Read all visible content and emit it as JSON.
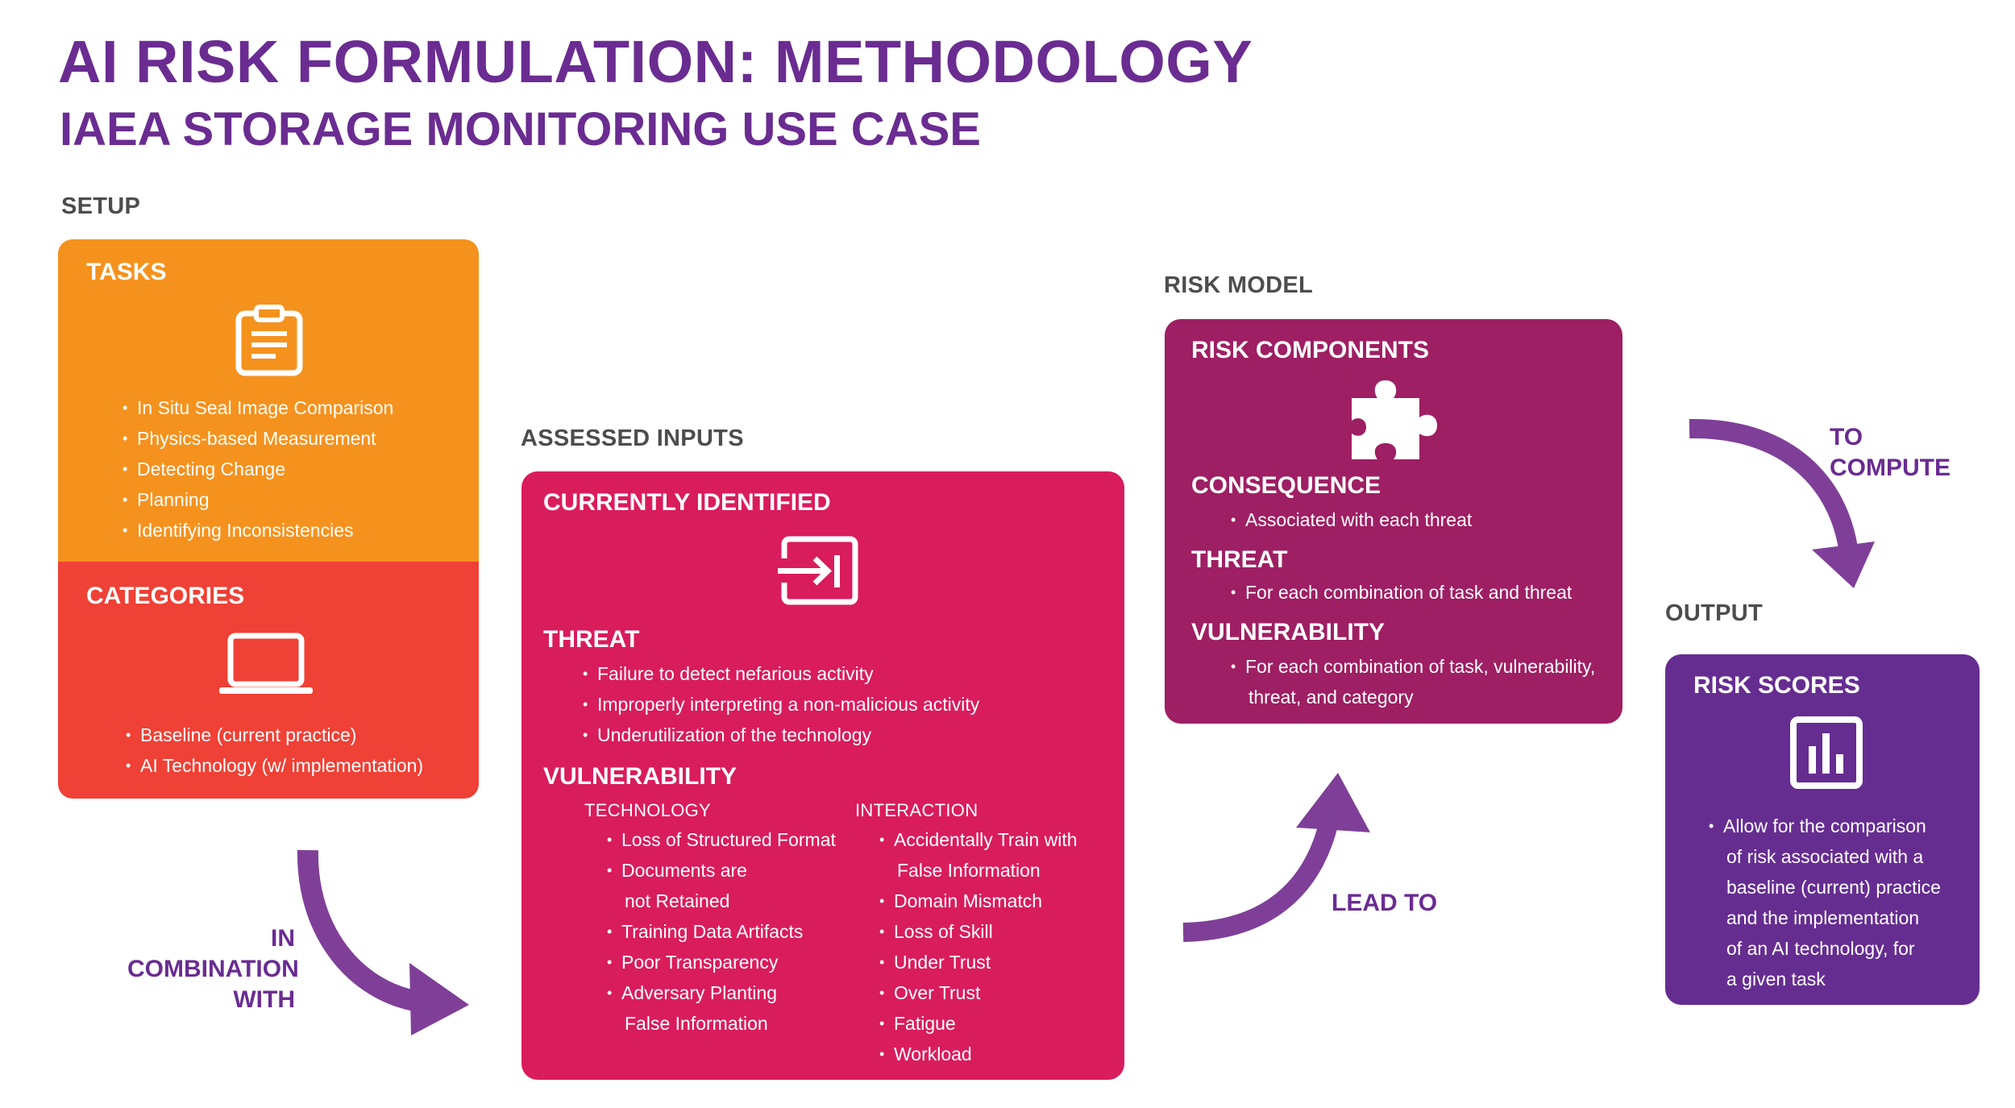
{
  "header": {
    "title": "AI RISK FORMULATION: METHODOLOGY",
    "subtitle": "IAEA STORAGE MONITORING USE CASE"
  },
  "sections": {
    "setup": "SETUP",
    "assessed_inputs": "ASSESSED INPUTS",
    "risk_model": "RISK MODEL",
    "output": "OUTPUT"
  },
  "tasks": {
    "heading": "TASKS",
    "icon": "clipboard-icon",
    "items": [
      "In Situ Seal Image Comparison",
      "Physics-based Measurement",
      "Detecting Change",
      "Planning",
      "Identifying Inconsistencies"
    ]
  },
  "categories": {
    "heading": "CATEGORIES",
    "icon": "laptop-icon",
    "items": [
      "Baseline (current practice)",
      "AI Technology (w/ implementation)"
    ]
  },
  "inputs": {
    "heading": "CURRENTLY IDENTIFIED",
    "icon": "input-arrow-icon",
    "threat_heading": "THREAT",
    "threat_items": [
      "Failure to detect nefarious activity",
      "Improperly interpreting a non-malicious activity",
      "Underutilization of the technology"
    ],
    "vulnerability_heading": "VULNERABILITY",
    "technology_heading": "TECHNOLOGY",
    "technology_items": [
      "Loss of Structured Format",
      "Documents are",
      "not Retained",
      "Training Data Artifacts",
      "Poor Transparency",
      "Adversary Planting",
      "False Information"
    ],
    "interaction_heading": "INTERACTION",
    "interaction_items": [
      "Accidentally Train with",
      "False Information",
      "Domain Mismatch",
      "Loss of Skill",
      "Under Trust",
      "Over Trust",
      "Fatigue",
      "Workload"
    ]
  },
  "risk_components": {
    "heading": "RISK COMPONENTS",
    "icon": "puzzle-piece-icon",
    "consequence_heading": "CONSEQUENCE",
    "consequence_items": [
      "Associated with each threat"
    ],
    "threat_heading": "THREAT",
    "threat_items": [
      "For each combination of task and threat"
    ],
    "vulnerability_heading": "VULNERABILITY",
    "vulnerability_items": [
      "For each combination of task, vulnerability,",
      "threat, and category"
    ]
  },
  "risk_scores": {
    "heading": "RISK SCORES",
    "icon": "bar-chart-icon",
    "items": [
      "Allow for the comparison",
      "of risk associated with a",
      "baseline (current) practice",
      "and the implementation",
      "of an AI technology, for",
      "a given task"
    ]
  },
  "arrows": {
    "in_combination_with": [
      "IN",
      "COMBINATION",
      "WITH"
    ],
    "lead_to": "LEAD TO",
    "to_compute": [
      "TO",
      "COMPUTE"
    ]
  },
  "colors": {
    "title": "#6a2c91",
    "tasks_box": "#f5921e",
    "categories_box": "#ef4136",
    "inputs_box": "#d91c5c",
    "risk_components_box": "#9e1f63",
    "risk_scores_box": "#662d91",
    "arrow": "#7f3f98"
  }
}
